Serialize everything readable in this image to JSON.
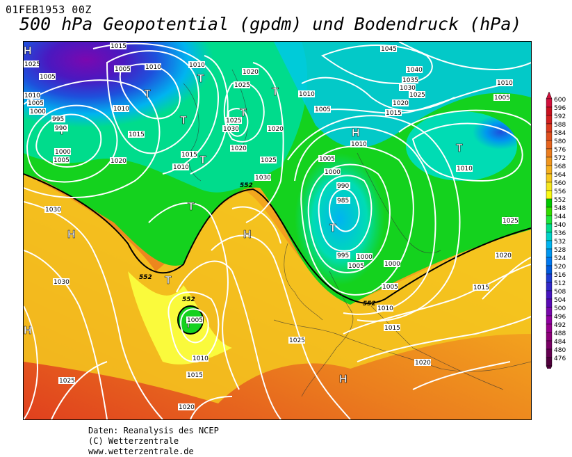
{
  "header": {
    "date": "01FEB1953 00Z",
    "title": "500 hPa Geopotential (gpdm) und Bodendruck (hPa)"
  },
  "credits": {
    "line1": "Daten: Reanalysis des NCEP",
    "line2": "(C) Wetterzentrale",
    "line3": "www.wetterzentrale.de"
  },
  "legend": {
    "levels": [
      "600",
      "596",
      "592",
      "588",
      "584",
      "580",
      "576",
      "572",
      "568",
      "564",
      "560",
      "556",
      "552",
      "548",
      "544",
      "540",
      "536",
      "532",
      "528",
      "524",
      "520",
      "516",
      "512",
      "508",
      "504",
      "500",
      "496",
      "492",
      "488",
      "484",
      "480",
      "476"
    ],
    "colors": [
      "#d2103c",
      "#c8101e",
      "#d21f1f",
      "#dc3a1e",
      "#e04f1e",
      "#e6641e",
      "#eb7d1e",
      "#f0961e",
      "#f5af1e",
      "#f7c81e",
      "#f5e61e",
      "#fafa14",
      "#00c800",
      "#32dc00",
      "#1ee63c",
      "#00dc8c",
      "#00d2c8",
      "#00b4f0",
      "#0096f0",
      "#0078f0",
      "#005adc",
      "#1e3cd2",
      "#3228c8",
      "#4614be",
      "#5a0ab4",
      "#7808aa",
      "#9000a0",
      "#96008c",
      "#8c0078",
      "#780064",
      "#640050",
      "#50003c"
    ]
  },
  "map_labels": {
    "highs": [
      "H",
      "H",
      "H",
      "H",
      "H",
      "H",
      "H"
    ],
    "lows": [
      "T",
      "T",
      "T",
      "T",
      "T",
      "T",
      "T",
      "T",
      "T",
      "T",
      "T",
      "T"
    ],
    "isobars": [
      "1015",
      "1005",
      "1010",
      "1010",
      "1020",
      "1025",
      "1010",
      "1015",
      "1010",
      "1005",
      "1000",
      "995",
      "990",
      "1000",
      "1005",
      "1020",
      "1025",
      "1030",
      "1025",
      "1020",
      "1030",
      "1015",
      "1010",
      "1020",
      "1045",
      "1040",
      "1035",
      "1030",
      "1025",
      "1020",
      "1015",
      "1010",
      "1005",
      "1010",
      "1005",
      "1000",
      "995",
      "990",
      "985",
      "995",
      "1000",
      "1005",
      "1000",
      "1005",
      "1010",
      "1015",
      "1020",
      "1025",
      "1030",
      "1030",
      "1025",
      "1020",
      "1015",
      "1010",
      "1005",
      "1025",
      "1020",
      "1015",
      "1010",
      "1015",
      "1020",
      "1025",
      "1015",
      "1020",
      "1015",
      "1010",
      "1005",
      "1010",
      "1025",
      "1005",
      "995"
    ],
    "contours": [
      "552",
      "552",
      "552",
      "552",
      "552"
    ]
  }
}
